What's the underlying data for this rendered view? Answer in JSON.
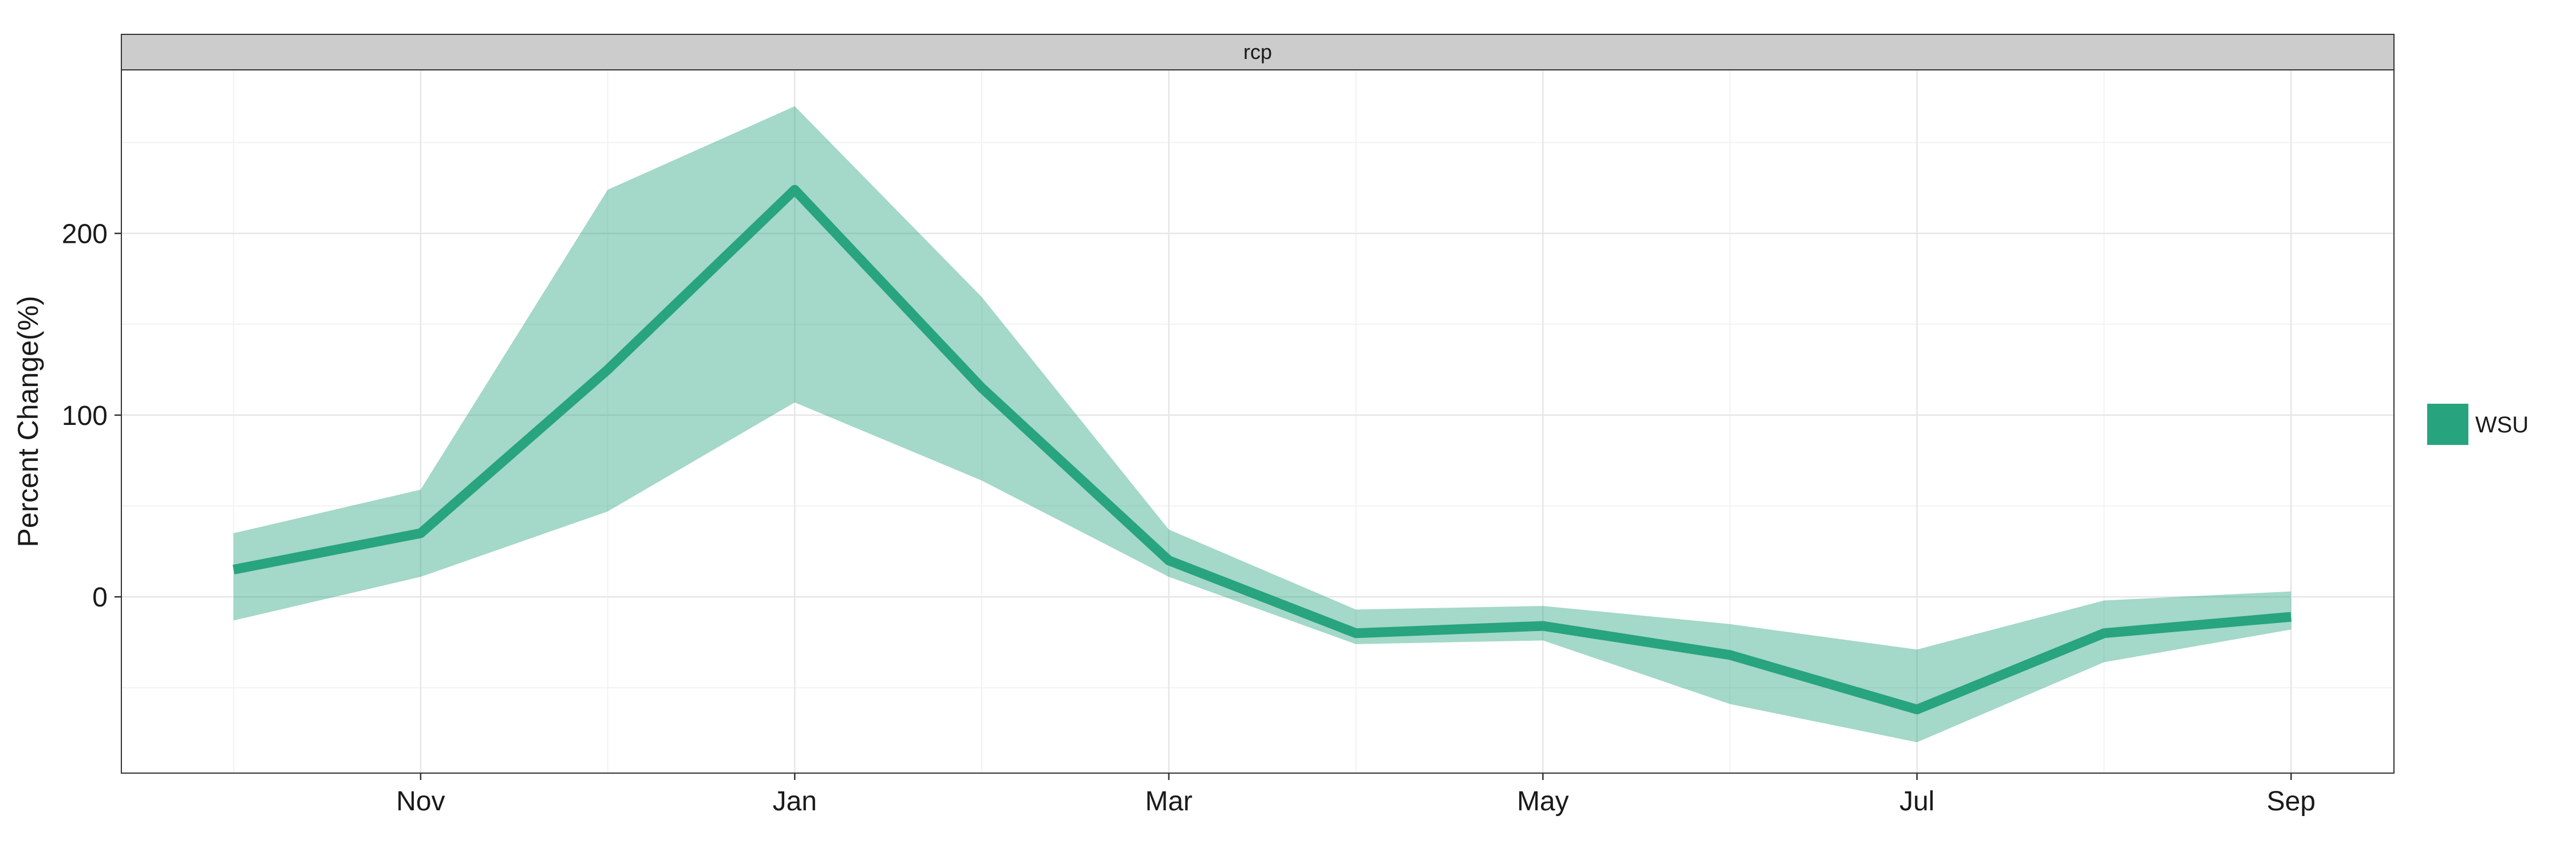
{
  "chart_data": {
    "type": "area",
    "panel_strip": "rcp",
    "x": [
      1,
      2,
      3,
      4,
      5,
      6,
      7,
      8,
      9,
      10,
      11,
      12
    ],
    "x_tick_values": [
      2,
      4,
      6,
      8,
      10,
      12
    ],
    "x_tick_labels": [
      "Nov",
      "Jan",
      "Mar",
      "May",
      "Jul",
      "Sep"
    ],
    "y_tick_values": [
      0,
      100,
      200
    ],
    "y_tick_labels": [
      "0",
      "100",
      "200"
    ],
    "ylabel": "Percent Change(%)",
    "xlabel": "",
    "xlim": [
      0.4,
      12.55
    ],
    "ylim": [
      -97,
      290
    ],
    "grid": true,
    "legend_position": "right",
    "series": [
      {
        "name": "WSU",
        "color": "#1b9e77",
        "values": [
          15,
          35,
          125,
          224,
          115,
          20,
          -20,
          -16,
          -32,
          -62,
          -20,
          -11
        ],
        "lower": [
          -13,
          11,
          47,
          107,
          64,
          11,
          -26,
          -24,
          -59,
          -80,
          -36,
          -18
        ],
        "upper": [
          35,
          59,
          224,
          270,
          165,
          37,
          -7,
          -5,
          -15,
          -29,
          -2,
          3
        ]
      }
    ]
  }
}
